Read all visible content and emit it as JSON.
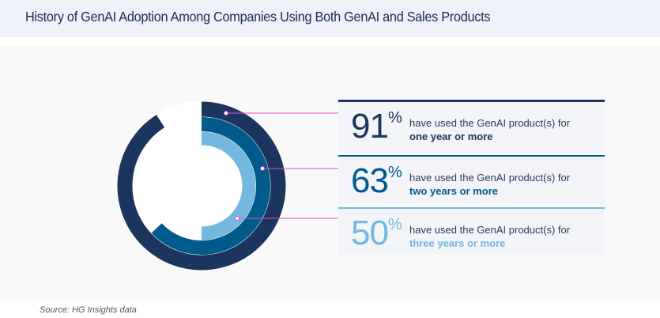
{
  "title": "History of GenAI Adoption Among Companies Using Both GenAI and Sales Products",
  "source": "Source: HG Insights data",
  "chart_data": {
    "type": "radial-bar",
    "unit": "%",
    "series": [
      {
        "value": 91,
        "label": "91",
        "text": "have used the GenAI product(s) for",
        "bold": "one year or more",
        "color": "#1b355f"
      },
      {
        "value": 63,
        "label": "63",
        "text": "have used the GenAI product(s) for",
        "bold": "two years or more",
        "color": "#005a8c"
      },
      {
        "value": 50,
        "label": "50",
        "text": "have used the GenAI product(s) for",
        "bold": "three years or more",
        "color": "#74b8df"
      }
    ],
    "connector_color": "#d94fc7"
  }
}
